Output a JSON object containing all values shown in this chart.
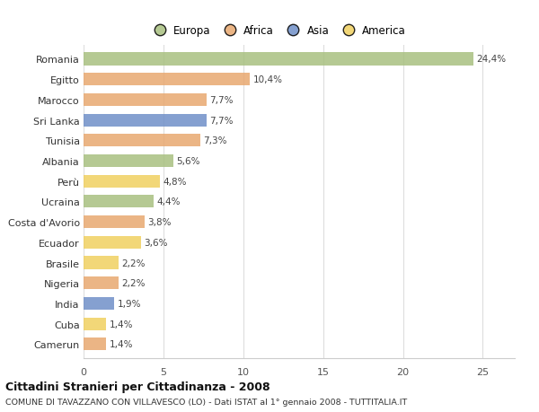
{
  "countries": [
    "Romania",
    "Egitto",
    "Marocco",
    "Sri Lanka",
    "Tunisia",
    "Albania",
    "Perù",
    "Ucraina",
    "Costa d'Avorio",
    "Ecuador",
    "Brasile",
    "Nigeria",
    "India",
    "Cuba",
    "Camerun"
  ],
  "values": [
    24.4,
    10.4,
    7.7,
    7.7,
    7.3,
    5.6,
    4.8,
    4.4,
    3.8,
    3.6,
    2.2,
    2.2,
    1.9,
    1.4,
    1.4
  ],
  "labels": [
    "24,4%",
    "10,4%",
    "7,7%",
    "7,7%",
    "7,3%",
    "5,6%",
    "4,8%",
    "4,4%",
    "3,8%",
    "3,6%",
    "2,2%",
    "2,2%",
    "1,9%",
    "1,4%",
    "1,4%"
  ],
  "continents": [
    "Europa",
    "Africa",
    "Africa",
    "Asia",
    "Africa",
    "Europa",
    "America",
    "Europa",
    "Africa",
    "America",
    "America",
    "Africa",
    "Asia",
    "America",
    "Africa"
  ],
  "continent_colors": {
    "Europa": "#a8c080",
    "Africa": "#e8a870",
    "Asia": "#7090c8",
    "America": "#f0d060"
  },
  "legend_order": [
    "Europa",
    "Africa",
    "Asia",
    "America"
  ],
  "legend_colors": [
    "#a8c080",
    "#e8a870",
    "#7090c8",
    "#f0d060"
  ],
  "background_color": "#ffffff",
  "title": "Cittadini Stranieri per Cittadinanza - 2008",
  "subtitle": "COMUNE DI TAVAZZANO CON VILLAVESCO (LO) - Dati ISTAT al 1° gennaio 2008 - TUTTITALIA.IT",
  "xlim": [
    0,
    27
  ],
  "xticks": [
    0,
    5,
    10,
    15,
    20,
    25
  ],
  "bar_height": 0.62
}
